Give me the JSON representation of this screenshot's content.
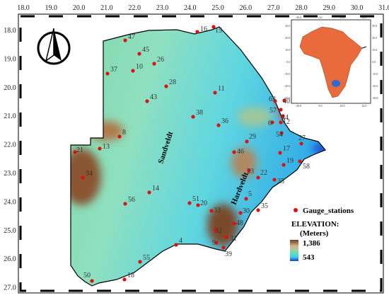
{
  "map": {
    "x_ticks": [
      "18.0",
      "19.0",
      "20.0",
      "21.0",
      "22.0",
      "23.0",
      "24.0",
      "25.0",
      "26.0",
      "27.0",
      "28.0",
      "29.0",
      "30.0",
      "31.0"
    ],
    "y_ticks": [
      "18.0",
      "19.0",
      "20.0",
      "21.0",
      "22.0",
      "23.0",
      "24.0",
      "25.0",
      "26.0",
      "27.0"
    ],
    "regions": [
      "Sandveldt",
      "Hardveldt"
    ],
    "stations": [
      "47",
      "45",
      "26",
      "10",
      "37",
      "28",
      "43",
      "11",
      "16",
      "15",
      "38",
      "36",
      "8",
      "13",
      "21",
      "34",
      "14",
      "56",
      "51",
      "20",
      "33",
      "30",
      "48",
      "5",
      "35",
      "32",
      "31",
      "9",
      "39",
      "4",
      "55",
      "18",
      "50",
      "29",
      "46",
      "23",
      "22",
      "25",
      "19",
      "17",
      "58",
      "27",
      "54",
      "6",
      "12",
      "57",
      "44",
      "40",
      "63"
    ],
    "legend": {
      "stations": "Gauge_stations",
      "elevation_title": "ELEVATION:",
      "elevation_units": "(Meters)",
      "elevation_max": "1,386",
      "elevation_min": "543"
    },
    "inset": {
      "x_ticks": [
        "-20.0",
        "0.0",
        "20.0",
        "42.0"
      ],
      "y_ticks": [
        "30.0",
        "20.0",
        "10.0",
        "0.0",
        "-10.0",
        "-20.0",
        "-30.0"
      ]
    }
  }
}
